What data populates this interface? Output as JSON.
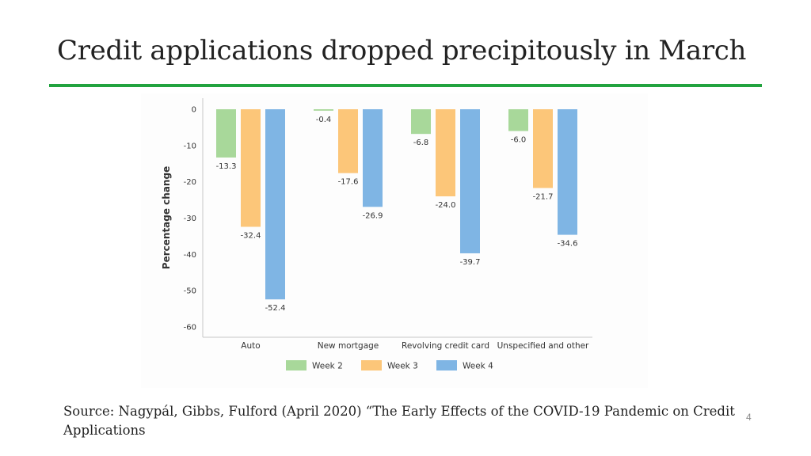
{
  "slide": {
    "title": "Credit applications dropped precipitously in March",
    "source": "Source: Nagypál, Gibbs, Fulford (April 2020) “The Early Effects of the COVID-19 Pandemic on Credit Applications",
    "page_number": "4"
  },
  "chart_data": {
    "type": "bar",
    "title": "",
    "xlabel": "",
    "ylabel": "Percentage change",
    "ylim": [
      -60,
      0
    ],
    "yticks": [
      0,
      -10,
      -20,
      -30,
      -40,
      -50,
      -60
    ],
    "grid": false,
    "legend_position": "bottom",
    "categories": [
      "Auto",
      "New mortgage",
      "Revolving credit card",
      "Unspecified and other"
    ],
    "series": [
      {
        "name": "Week 2",
        "color": "#a8d89a",
        "values": [
          -13.3,
          -0.4,
          -6.8,
          -6.0
        ],
        "labels": [
          "-13.3",
          "-0.4",
          "-6.8",
          "-6.0"
        ]
      },
      {
        "name": "Week 3",
        "color": "#fcc679",
        "values": [
          -32.4,
          -17.6,
          -24.0,
          -21.7
        ],
        "labels": [
          "-32.4",
          "-17.6",
          "-24.0",
          "-21.7"
        ]
      },
      {
        "name": "Week 4",
        "color": "#7fb5e4",
        "values": [
          -52.4,
          -26.9,
          -39.7,
          -34.6
        ],
        "labels": [
          "-52.4",
          "-26.9",
          "-39.7",
          "-34.6"
        ]
      }
    ],
    "axis_color": "#c8c8c8",
    "text_color": "#333333"
  }
}
